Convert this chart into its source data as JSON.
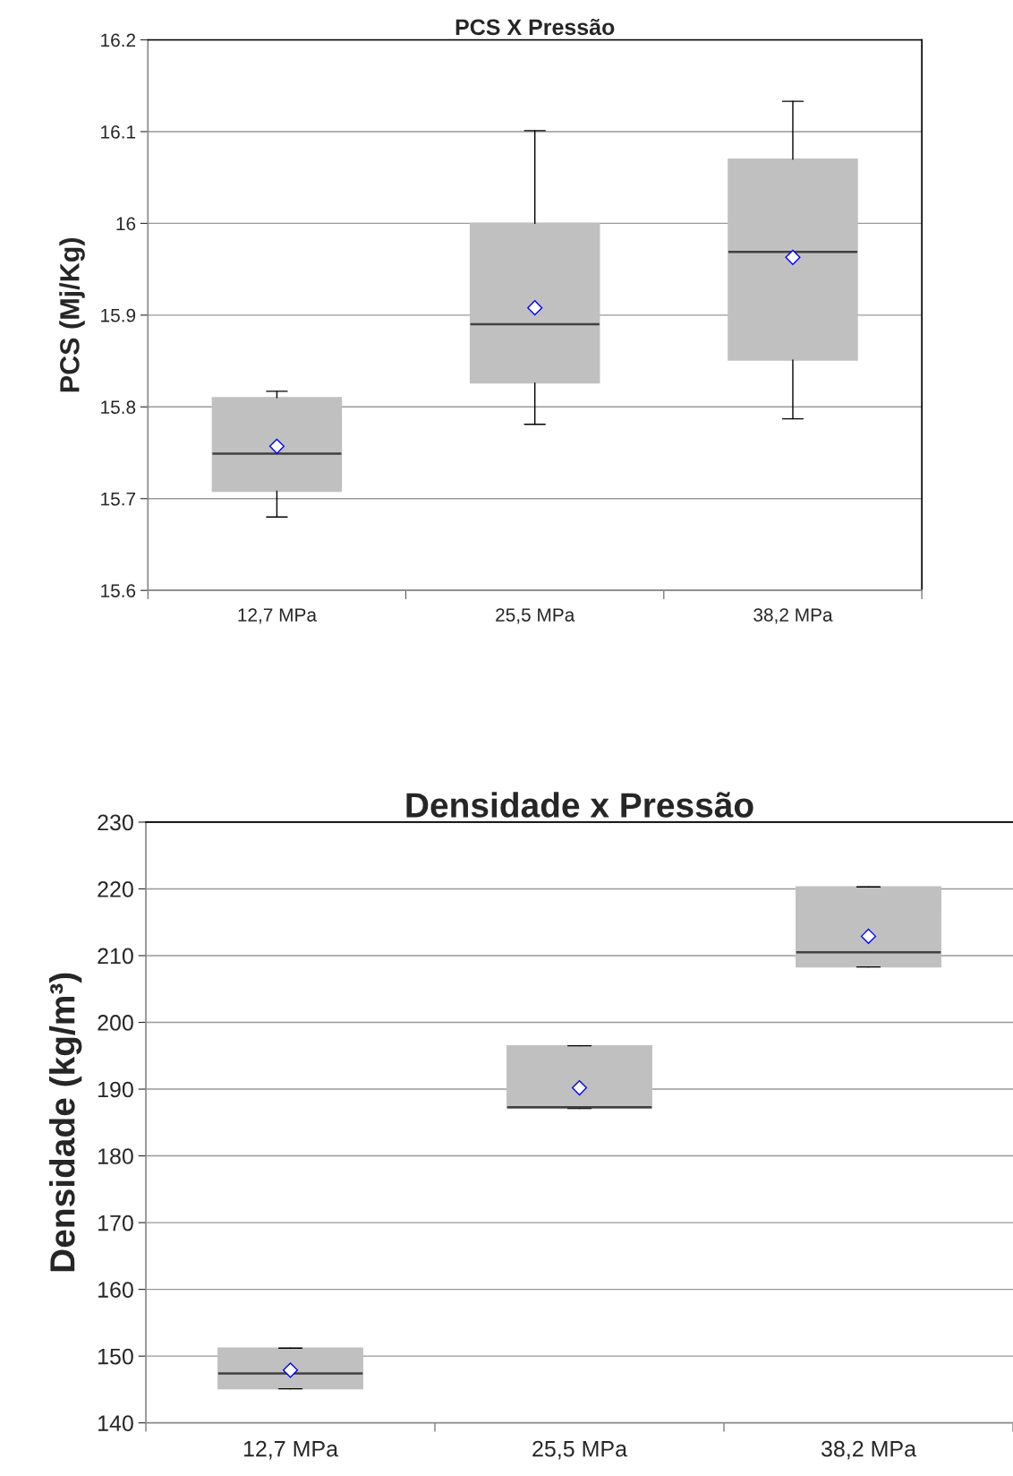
{
  "chart_data": [
    {
      "type": "box",
      "title": "PCS X Pressão",
      "ylabel": "PCS (Mj/Kg)",
      "categories": [
        "12,7 MPa",
        "25,5 MPa",
        "38,2 MPa"
      ],
      "ylim": [
        15.6,
        16.2
      ],
      "yticks": [
        15.6,
        15.7,
        15.8,
        15.9,
        16,
        16.1,
        16.2
      ],
      "grid": "y",
      "marker": "diamond",
      "series": [
        {
          "color": "#c0c0c0",
          "boxes": [
            {
              "low": 15.68,
              "q1": 15.708,
              "median": 15.749,
              "q3": 15.81,
              "high": 15.817,
              "mean": 15.757
            },
            {
              "low": 15.781,
              "q1": 15.826,
              "median": 15.89,
              "q3": 16.0,
              "high": 16.101,
              "mean": 15.908
            },
            {
              "low": 15.787,
              "q1": 15.851,
              "median": 15.969,
              "q3": 16.07,
              "high": 16.133,
              "mean": 15.963
            }
          ]
        }
      ]
    },
    {
      "type": "box",
      "title": "Densidade x Pressão",
      "ylabel": "Densidade (kg/m³)",
      "categories": [
        "12,7 MPa",
        "25,5 MPa",
        "38,2 MPa"
      ],
      "ylim": [
        140,
        230
      ],
      "yticks": [
        140,
        150,
        160,
        170,
        180,
        190,
        200,
        210,
        220,
        230
      ],
      "grid": "y",
      "marker": "diamond",
      "series": [
        {
          "color": "#c0c0c0",
          "boxes": [
            {
              "low": 145.1,
              "q1": 145.1,
              "median": 147.4,
              "q3": 151.2,
              "high": 151.2,
              "mean": 147.9
            },
            {
              "low": 187.1,
              "q1": 187.1,
              "median": 187.3,
              "q3": 196.5,
              "high": 196.5,
              "mean": 190.2
            },
            {
              "low": 208.3,
              "q1": 208.3,
              "median": 210.5,
              "q3": 220.3,
              "high": 220.3,
              "mean": 212.9
            }
          ]
        }
      ]
    }
  ]
}
